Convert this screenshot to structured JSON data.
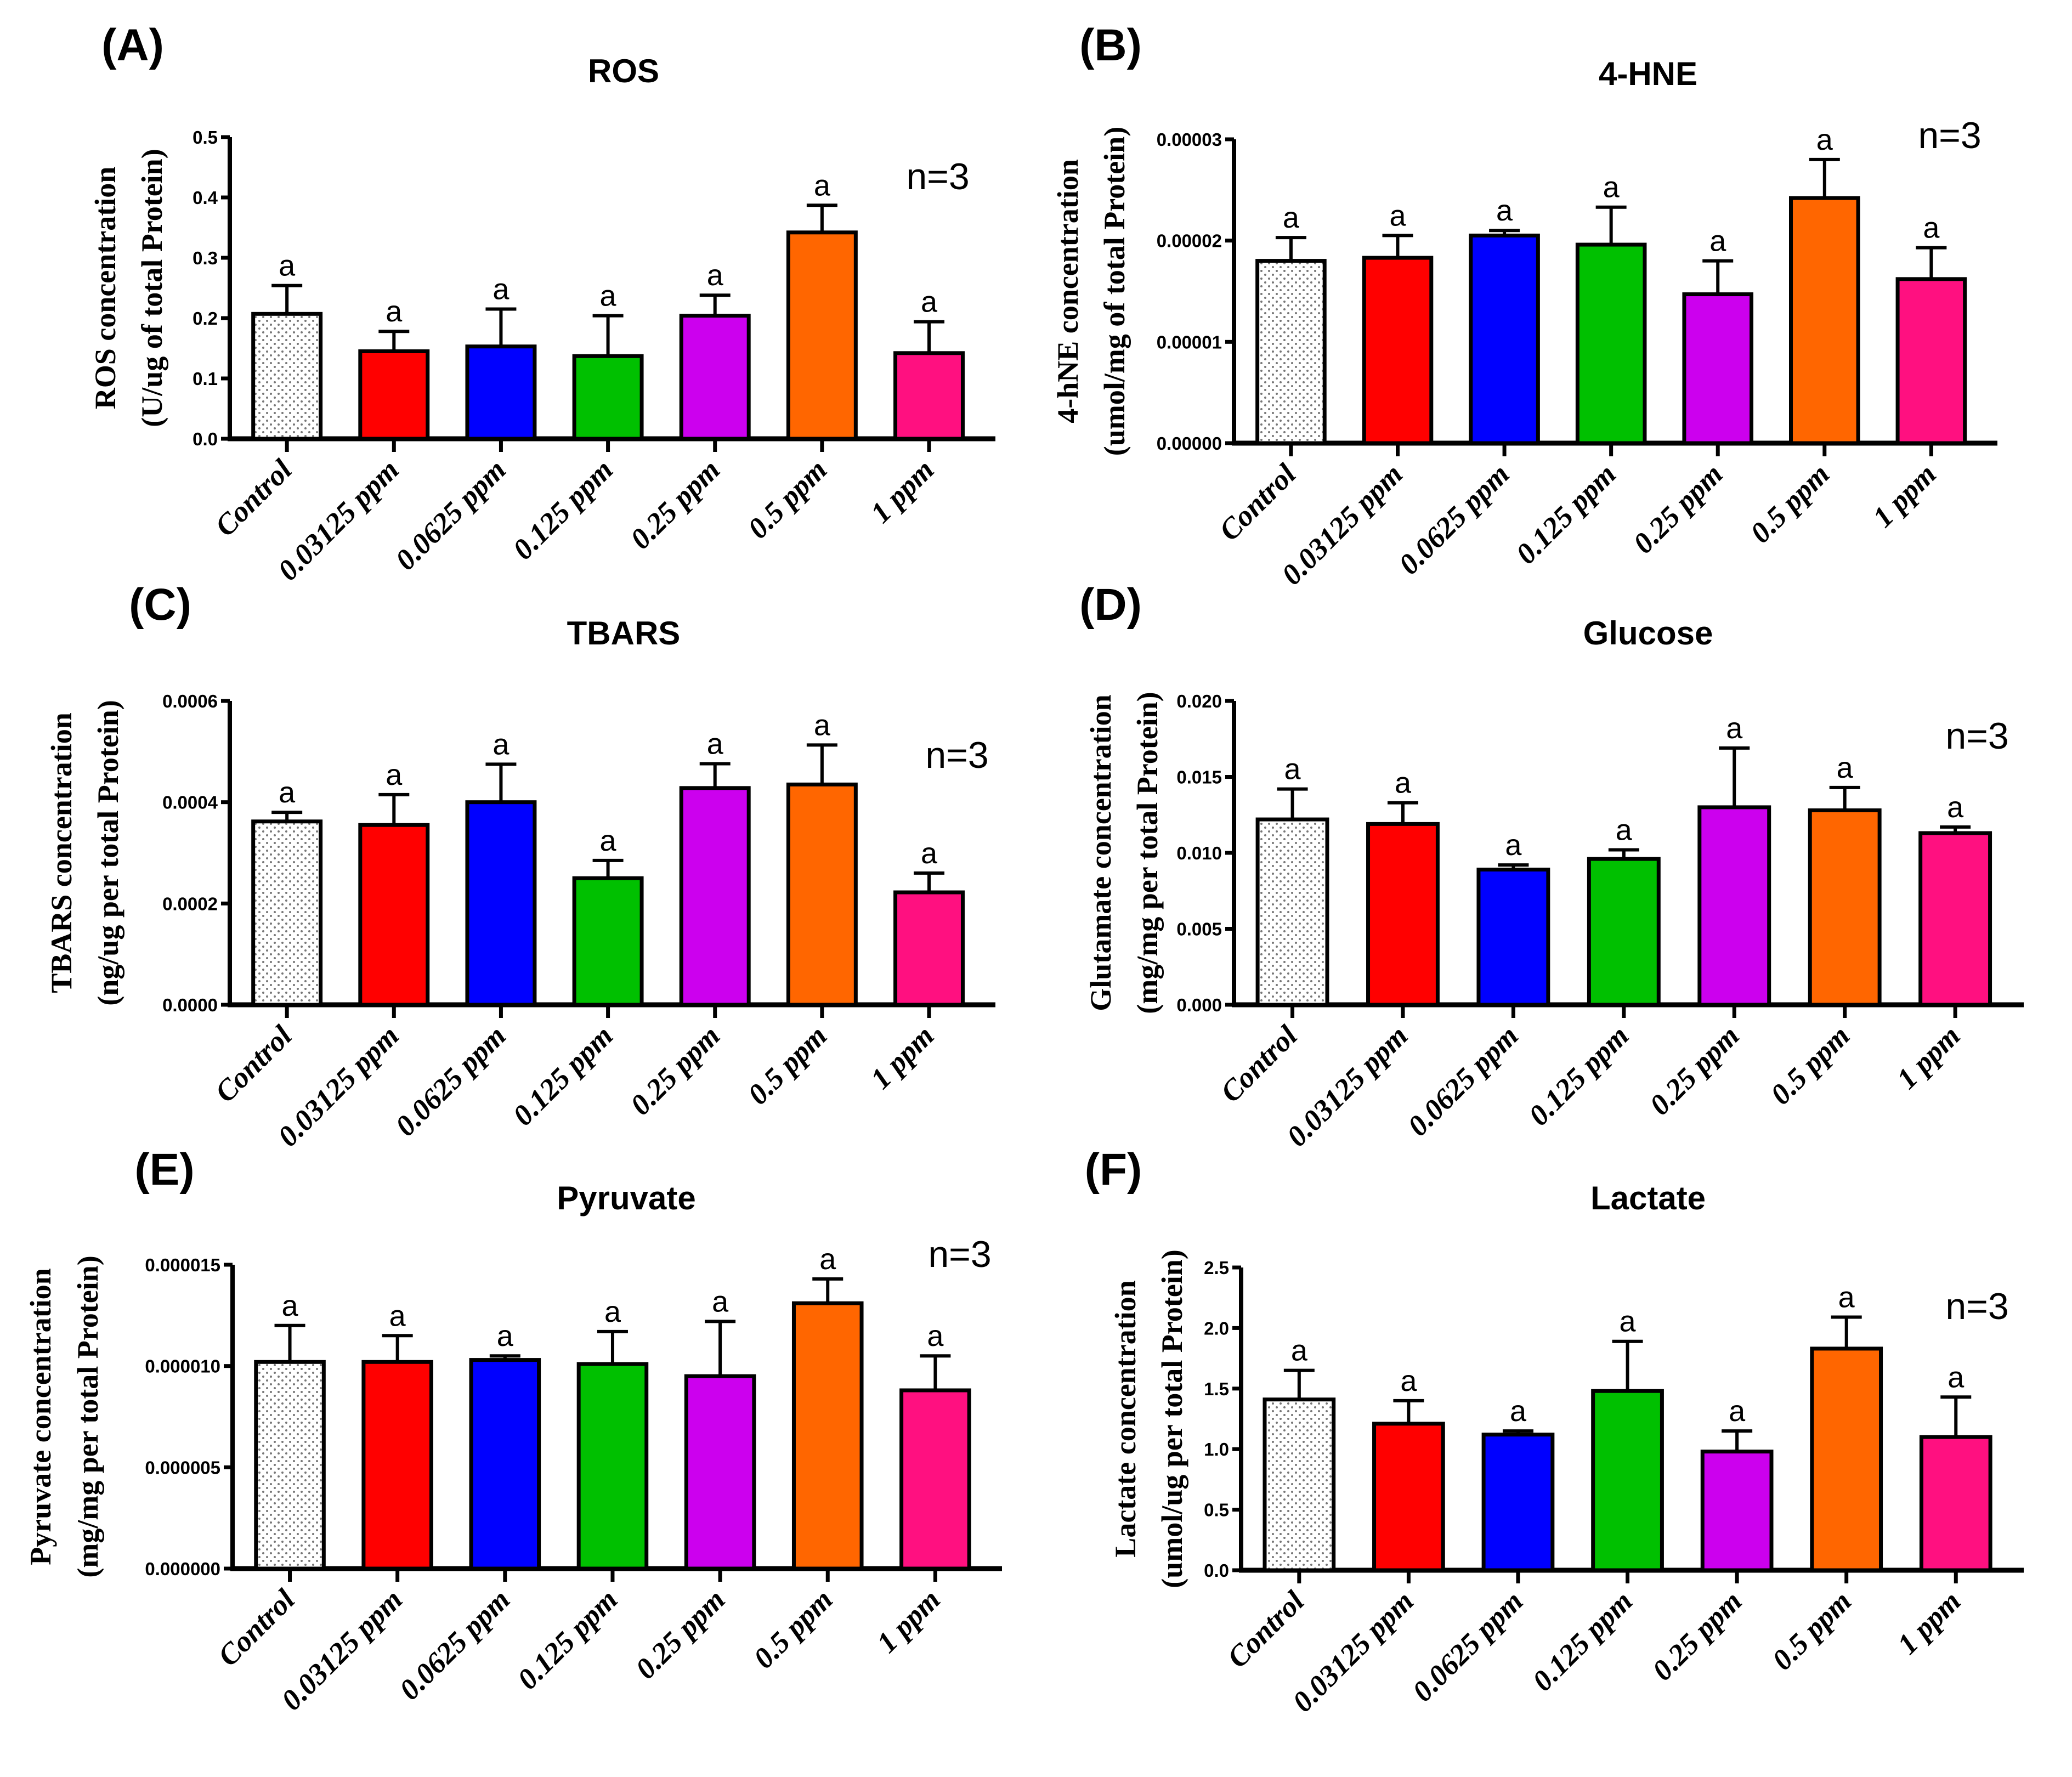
{
  "colors": {
    "Control": "#ffffff",
    "0.03125 ppm": "#ff0000",
    "0.0625 ppm": "#0000ff",
    "0.125 ppm": "#00c000",
    "0.25 ppm": "#cc00ee",
    "0.5 ppm": "#ff6600",
    "1 ppm": "#ff1080",
    "axis": "#000000"
  },
  "chart_data": [
    {
      "type": "bar",
      "panel": "(A)",
      "title": "ROS",
      "ylabel": [
        "ROS concentration",
        "(U/ug of total Protein)"
      ],
      "categories": [
        "Control",
        "0.03125 ppm",
        "0.0625 ppm",
        "0.125 ppm",
        "0.25 ppm",
        "0.5 ppm",
        "1 ppm"
      ],
      "values": [
        0.207,
        0.145,
        0.153,
        0.137,
        0.204,
        0.342,
        0.142
      ],
      "errors": [
        0.047,
        0.033,
        0.062,
        0.067,
        0.034,
        0.045,
        0.052
      ],
      "letters": [
        "a",
        "a",
        "a",
        "a",
        "a",
        "a",
        "a"
      ],
      "ylim": [
        0,
        0.5
      ],
      "yticks": [
        "0.0",
        "0.1",
        "0.2",
        "0.3",
        "0.4",
        "0.5"
      ],
      "annotation": "n=3"
    },
    {
      "type": "bar",
      "panel": "(B)",
      "title": "4-HNE",
      "ylabel": [
        "4-hNE concentration",
        "(umol/mg of total Protein)"
      ],
      "categories": [
        "Control",
        "0.03125 ppm",
        "0.0625 ppm",
        "0.125 ppm",
        "0.25 ppm",
        "0.5 ppm",
        "1 ppm"
      ],
      "values": [
        1.8e-05,
        1.83e-05,
        2.05e-05,
        1.96e-05,
        1.47e-05,
        2.42e-05,
        1.62e-05
      ],
      "errors": [
        2.3e-06,
        2.2e-06,
        5e-07,
        3.7e-06,
        3.3e-06,
        3.8e-06,
        3.1e-06
      ],
      "letters": [
        "a",
        "a",
        "a",
        "a",
        "a",
        "a",
        "a"
      ],
      "ylim": [
        0,
        3e-05
      ],
      "yticks": [
        "0.00000",
        "0.00001",
        "0.00002",
        "0.00003"
      ],
      "annotation": "n=3"
    },
    {
      "type": "bar",
      "panel": "(C)",
      "title": "TBARS",
      "ylabel": [
        "TBARS concentration",
        "(ng/ug per total Protein)"
      ],
      "categories": [
        "Control",
        "0.03125 ppm",
        "0.0625 ppm",
        "0.125 ppm",
        "0.25 ppm",
        "0.5 ppm",
        "1 ppm"
      ],
      "values": [
        0.000362,
        0.000355,
        0.0004,
        0.00025,
        0.000428,
        0.000435,
        0.000222
      ],
      "errors": [
        1.8e-05,
        6e-05,
        7.5e-05,
        3.5e-05,
        4.8e-05,
        7.8e-05,
        3.8e-05
      ],
      "letters": [
        "a",
        "a",
        "a",
        "a",
        "a",
        "a",
        "a"
      ],
      "ylim": [
        0,
        0.0006
      ],
      "yticks": [
        "0.0000",
        "0.0002",
        "0.0004",
        "0.0006"
      ],
      "annotation": "n=3"
    },
    {
      "type": "bar",
      "panel": "(D)",
      "title": "Glucose",
      "ylabel": [
        "Glutamate concentration",
        "(mg/mg per total Protein)"
      ],
      "categories": [
        "Control",
        "0.03125 ppm",
        "0.0625 ppm",
        "0.125 ppm",
        "0.25 ppm",
        "0.5 ppm",
        "1 ppm"
      ],
      "values": [
        0.0122,
        0.0119,
        0.0089,
        0.0096,
        0.013,
        0.0128,
        0.0113
      ],
      "errors": [
        0.002,
        0.0014,
        0.0003,
        0.0006,
        0.0039,
        0.0015,
        0.0004
      ],
      "letters": [
        "a",
        "a",
        "a",
        "a",
        "a",
        "a",
        "a"
      ],
      "ylim": [
        0,
        0.02
      ],
      "yticks": [
        "0.000",
        "0.005",
        "0.010",
        "0.015",
        "0.020"
      ],
      "annotation": "n=3"
    },
    {
      "type": "bar",
      "panel": "(E)",
      "title": "Pyruvate",
      "ylabel": [
        "Pyruvate concentration",
        "(mg/mg per total Protein)"
      ],
      "categories": [
        "Control",
        "0.03125 ppm",
        "0.0625 ppm",
        "0.125 ppm",
        "0.25 ppm",
        "0.5 ppm",
        "1 ppm"
      ],
      "values": [
        1.02e-05,
        1.02e-05,
        1.03e-05,
        1.01e-05,
        9.5e-06,
        1.31e-05,
        8.8e-06
      ],
      "errors": [
        1.8e-06,
        1.3e-06,
        2e-07,
        1.6e-06,
        2.7e-06,
        1.2e-06,
        1.7e-06
      ],
      "letters": [
        "a",
        "a",
        "a",
        "a",
        "a",
        "a",
        "a"
      ],
      "ylim": [
        0,
        1.5e-05
      ],
      "yticks": [
        "0.000000",
        "0.000005",
        "0.000010",
        "0.000015"
      ],
      "annotation": "n=3"
    },
    {
      "type": "bar",
      "panel": "(F)",
      "title": "Lactate",
      "ylabel": [
        "Lactate concentration",
        "(umol/ug per total Protein)"
      ],
      "categories": [
        "Control",
        "0.03125 ppm",
        "0.0625 ppm",
        "0.125 ppm",
        "0.25 ppm",
        "0.5 ppm",
        "1 ppm"
      ],
      "values": [
        1.41,
        1.21,
        1.12,
        1.48,
        0.98,
        1.83,
        1.1
      ],
      "errors": [
        0.24,
        0.19,
        0.03,
        0.41,
        0.17,
        0.26,
        0.33
      ],
      "letters": [
        "a",
        "a",
        "a",
        "a",
        "a",
        "a",
        "a"
      ],
      "ylim": [
        0,
        2.5
      ],
      "yticks": [
        "0.0",
        "0.5",
        "1.0",
        "1.5",
        "2.0",
        "2.5"
      ],
      "annotation": "n=3"
    }
  ]
}
